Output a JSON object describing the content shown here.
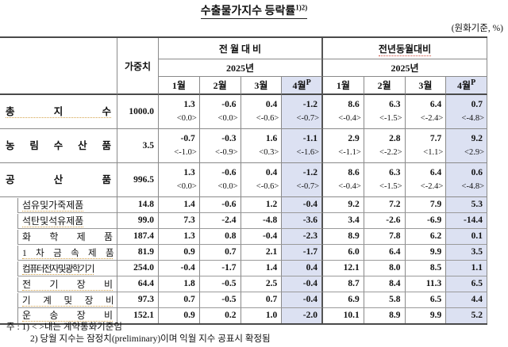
{
  "title": {
    "text": "수출물가지수 등락률",
    "sup": "1)2)"
  },
  "unit_note": "(원화기준, %)",
  "table": {
    "weight_header": "가중치",
    "groups": [
      {
        "label": "전 월 대 비",
        "year": "2025년",
        "underline": false
      },
      {
        "label": "전년동월대비",
        "year": "2025년",
        "underline": true
      }
    ],
    "months": [
      {
        "label": "1월",
        "sup": "",
        "highlight": false
      },
      {
        "label": "2월",
        "sup": "",
        "highlight": false
      },
      {
        "label": "3월",
        "sup": "",
        "highlight": false
      },
      {
        "label": "4월",
        "sup": "P",
        "highlight": true
      }
    ],
    "rows": [
      {
        "label": "총 지 수",
        "level": "main",
        "underline": true,
        "weight": "1000.0",
        "mom": [
          "1.3",
          "-0.6",
          "0.4",
          "-1.2"
        ],
        "mom_b": [
          "<0.0>",
          "<0.0>",
          "<-0.6>",
          "<-0.7>"
        ],
        "yoy": [
          "8.6",
          "6.3",
          "6.4",
          "0.7"
        ],
        "yoy_b": [
          "<-0.4>",
          "<-1.5>",
          "<-2.4>",
          "<-4.8>"
        ]
      },
      {
        "label": "농 림 수 산 품",
        "level": "main",
        "underline": false,
        "weight": "3.5",
        "mom": [
          "-0.7",
          "-0.3",
          "1.6",
          "-1.1"
        ],
        "mom_b": [
          "<-1.0>",
          "<-0.9>",
          "<0.3>",
          "<-1.6>"
        ],
        "yoy": [
          "2.9",
          "2.8",
          "7.7",
          "9.2"
        ],
        "yoy_b": [
          "<-1.1>",
          "<-2.2>",
          "<1.1>",
          "<2.9>"
        ]
      },
      {
        "label": "공 산 품",
        "level": "main",
        "underline": false,
        "weight": "996.5",
        "mom": [
          "1.3",
          "-0.6",
          "0.4",
          "-1.2"
        ],
        "mom_b": [
          "<0.0>",
          "<0.0>",
          "<-0.6>",
          "<-0.7>"
        ],
        "yoy": [
          "8.6",
          "6.3",
          "6.4",
          "0.6"
        ],
        "yoy_b": [
          "<-0.4>",
          "<-1.5>",
          "<-2.4>",
          "<-4.8>"
        ]
      },
      {
        "label": "섬유및가죽제품",
        "level": "sub",
        "underline": true,
        "weight": "14.8",
        "mom": [
          "1.4",
          "-0.6",
          "1.2",
          "-0.4"
        ],
        "yoy": [
          "9.2",
          "7.2",
          "7.9",
          "5.3"
        ]
      },
      {
        "label": "석탄및석유제품",
        "level": "sub",
        "underline": true,
        "weight": "99.0",
        "mom": [
          "7.3",
          "-2.4",
          "-4.8",
          "-3.6"
        ],
        "yoy": [
          "3.4",
          "-2.6",
          "-6.9",
          "-14.4"
        ]
      },
      {
        "label": "화 학 제 품",
        "level": "sub",
        "underline": false,
        "weight": "187.4",
        "mom": [
          "1.3",
          "0.8",
          "-0.4",
          "-2.3"
        ],
        "yoy": [
          "8.9",
          "7.8",
          "6.2",
          "0.1"
        ]
      },
      {
        "label": "1 차 금 속 제 품",
        "level": "sub",
        "underline": true,
        "weight": "81.9",
        "mom": [
          "0.9",
          "0.7",
          "2.1",
          "-1.7"
        ],
        "yoy": [
          "6.0",
          "6.4",
          "9.9",
          "3.5"
        ]
      },
      {
        "label": "컴퓨터전자및광학기기",
        "level": "sub",
        "underline": true,
        "weight": "254.0",
        "mom": [
          "-0.4",
          "-1.7",
          "1.4",
          "0.4"
        ],
        "yoy": [
          "12.1",
          "8.0",
          "8.5",
          "1.1"
        ]
      },
      {
        "label": "전 기 장 비",
        "level": "sub",
        "underline": true,
        "weight": "64.4",
        "mom": [
          "1.8",
          "-0.5",
          "2.5",
          "-0.4"
        ],
        "yoy": [
          "8.7",
          "8.4",
          "11.3",
          "6.5"
        ]
      },
      {
        "label": "기 계 및 장 비",
        "level": "sub",
        "underline": true,
        "weight": "97.3",
        "mom": [
          "0.7",
          "-0.5",
          "0.7",
          "-0.4"
        ],
        "yoy": [
          "6.9",
          "5.8",
          "6.5",
          "4.4"
        ]
      },
      {
        "label": "운 송 장 비",
        "level": "sub",
        "underline": true,
        "weight": "152.1",
        "mom": [
          "0.9",
          "0.2",
          "1.0",
          "-2.0"
        ],
        "yoy": [
          "10.1",
          "8.9",
          "9.9",
          "5.2"
        ]
      }
    ]
  },
  "notes": [
    "주 : 1) < >내는 계약통화기준임",
    "2) 당월 지수는 잠정치(preliminary)이며 익월 지수 공표시 확정됨"
  ]
}
